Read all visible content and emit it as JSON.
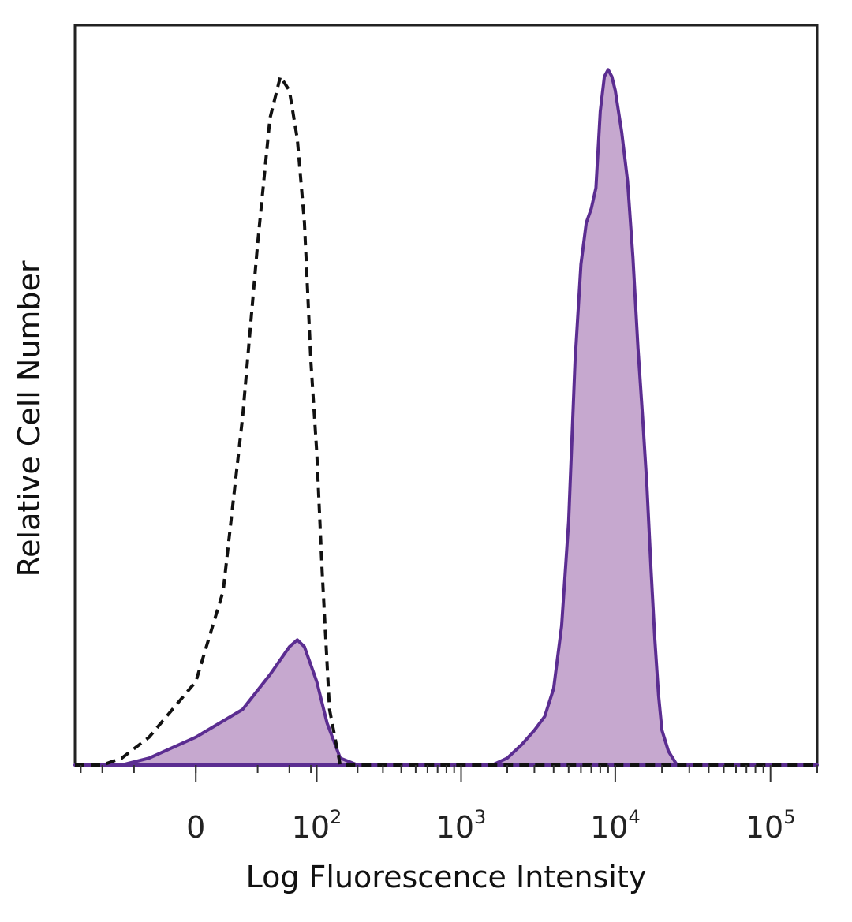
{
  "chart_data": {
    "type": "area",
    "title": "",
    "xlabel": "Log Fluorescence Intensity",
    "ylabel": "Relative Cell Number",
    "x_scale": "biexponential",
    "xlim": [
      -100,
      200000
    ],
    "ylim": [
      0,
      100
    ],
    "grid": false,
    "legend": "none",
    "x_ticks": [
      {
        "value": 0,
        "base": "0",
        "exp": ""
      },
      {
        "value": 100,
        "base": "10",
        "exp": "2"
      },
      {
        "value": 1000,
        "base": "10",
        "exp": "3"
      },
      {
        "value": 10000,
        "base": "10",
        "exp": "4"
      },
      {
        "value": 100000,
        "base": "10",
        "exp": "5"
      }
    ],
    "series": [
      {
        "style": "dashed-unfilled",
        "color": "#111111",
        "points": [
          [
            -100,
            0
          ],
          [
            -60,
            0
          ],
          [
            -40,
            1
          ],
          [
            -20,
            4
          ],
          [
            0,
            12
          ],
          [
            10,
            25
          ],
          [
            20,
            50
          ],
          [
            30,
            75
          ],
          [
            40,
            93
          ],
          [
            50,
            99
          ],
          [
            60,
            97
          ],
          [
            70,
            90
          ],
          [
            80,
            78
          ],
          [
            90,
            58
          ],
          [
            100,
            45
          ],
          [
            110,
            28
          ],
          [
            125,
            8
          ],
          [
            150,
            0
          ],
          [
            200,
            0
          ],
          [
            200000,
            0
          ]
        ]
      },
      {
        "style": "filled",
        "color": "#5b2d91",
        "fill": "#c6a8cf",
        "points": [
          [
            -100,
            0
          ],
          [
            -40,
            0
          ],
          [
            -20,
            1
          ],
          [
            0,
            4
          ],
          [
            20,
            8
          ],
          [
            40,
            13
          ],
          [
            60,
            17
          ],
          [
            70,
            18
          ],
          [
            80,
            17
          ],
          [
            100,
            12
          ],
          [
            120,
            6
          ],
          [
            150,
            1
          ],
          [
            200,
            0
          ],
          [
            1000,
            0
          ],
          [
            1600,
            0
          ],
          [
            2000,
            1
          ],
          [
            2500,
            3
          ],
          [
            3000,
            5
          ],
          [
            3500,
            7
          ],
          [
            4000,
            11
          ],
          [
            4500,
            20
          ],
          [
            5000,
            35
          ],
          [
            5500,
            58
          ],
          [
            6000,
            72
          ],
          [
            6500,
            78
          ],
          [
            7000,
            80
          ],
          [
            7500,
            83
          ],
          [
            8000,
            94
          ],
          [
            8500,
            99
          ],
          [
            9000,
            100
          ],
          [
            9500,
            99
          ],
          [
            10000,
            97
          ],
          [
            11000,
            91
          ],
          [
            12000,
            84
          ],
          [
            13000,
            73
          ],
          [
            14000,
            60
          ],
          [
            15000,
            50
          ],
          [
            16000,
            40
          ],
          [
            17000,
            28
          ],
          [
            18000,
            18
          ],
          [
            19000,
            10
          ],
          [
            20000,
            5
          ],
          [
            22000,
            2
          ],
          [
            25000,
            0
          ],
          [
            200000,
            0
          ]
        ]
      }
    ]
  }
}
